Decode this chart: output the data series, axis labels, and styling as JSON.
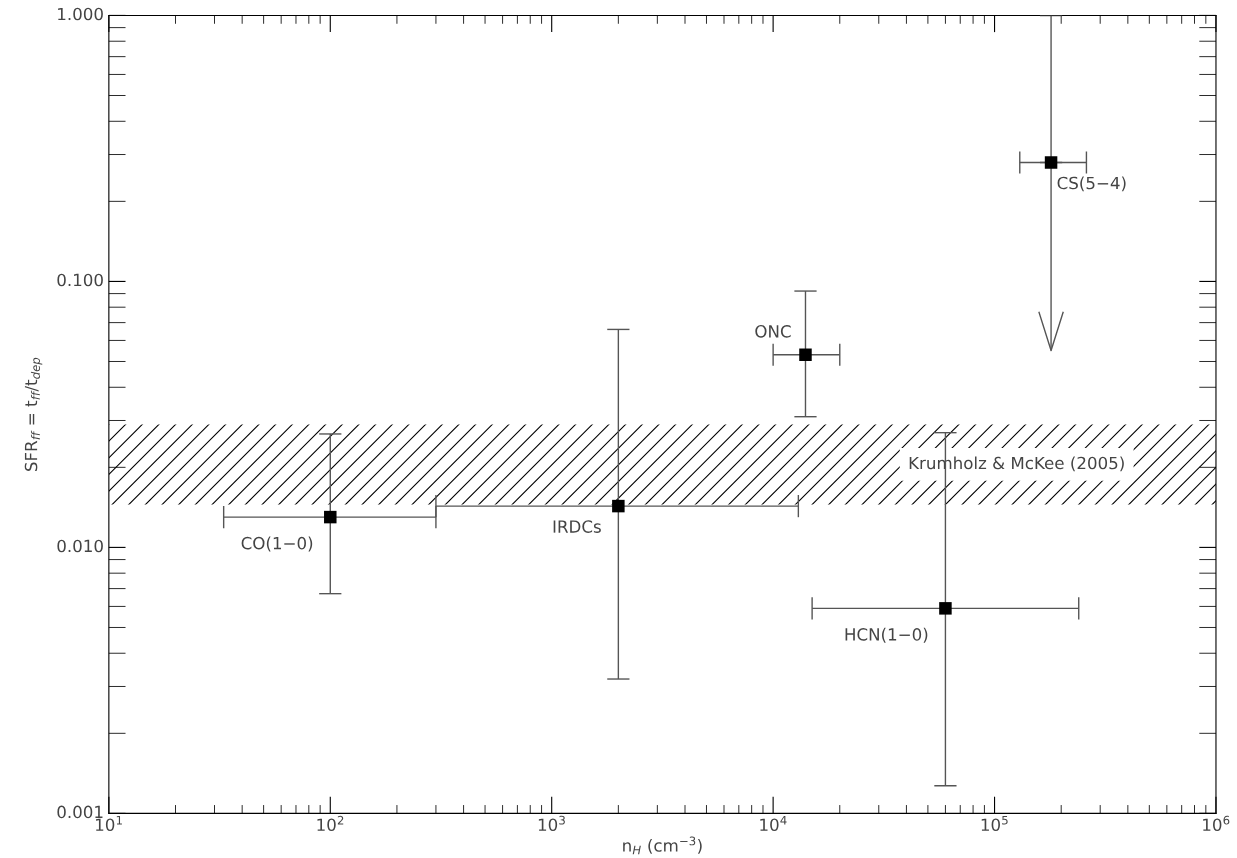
{
  "chart_data": {
    "type": "scatter",
    "xlabel": "n$_{H}$ (cm$^{−3}$)",
    "ylabel": "SFR$_{ff}$ = t$_{ff}$/t$_{dep}$",
    "log": "xy",
    "marker": "square",
    "grid": false,
    "legend": false,
    "xlim": [
      10,
      1000000
    ],
    "ylim": [
      0.001,
      1.0
    ],
    "xticks": [
      {
        "value": 10,
        "label": "10$^{1}$"
      },
      {
        "value": 100,
        "label": "10$^{2}$"
      },
      {
        "value": 1000,
        "label": "10$^{3}$"
      },
      {
        "value": 10000,
        "label": "10$^{4}$"
      },
      {
        "value": 100000,
        "label": "10$^{5}$"
      },
      {
        "value": 1000000,
        "label": "10$^{6}$"
      }
    ],
    "yticks": [
      {
        "value": 0.001,
        "label": "0.001"
      },
      {
        "value": 0.01,
        "label": "0.010"
      },
      {
        "value": 0.1,
        "label": "0.100"
      },
      {
        "value": 1.0,
        "label": "1.000"
      }
    ],
    "series": [
      {
        "color": "#000000",
        "x": [
          100,
          2000,
          14000,
          60000
        ],
        "values": [
          0.013,
          0.0143,
          0.053,
          0.0059
        ],
        "errors": [
          [
            0.0067,
            0.0267
          ],
          [
            0.0032,
            0.066
          ],
          [
            0.031,
            0.092
          ],
          [
            0.00127,
            0.027
          ]
        ],
        "xerrors": [
          [
            33,
            300
          ],
          [
            300,
            13000
          ],
          [
            10000,
            20000
          ],
          [
            15000,
            240000
          ]
        ]
      },
      {
        "color": "#000000",
        "x": [
          180000
        ],
        "values": [
          0.28
        ],
        "errors": [
          [
            0.055,
            1.0
          ]
        ],
        "xerrors": [
          [
            130000,
            260000
          ]
        ]
      }
    ],
    "bands": [
      {
        "axis": "y",
        "from": 0.0145,
        "to": 0.029,
        "label": "Krumholz & McKee (2005)",
        "color": "#000000"
      }
    ],
    "annotations": [
      {
        "text": "CO(1−0)",
        "x": 100,
        "y": 0.013
      },
      {
        "text": "IRDCs",
        "x": 2000,
        "y": 0.0143
      },
      {
        "text": "ONC",
        "x": 14000,
        "y": 0.053
      },
      {
        "text": "HCN(1−0)",
        "x": 60000,
        "y": 0.0059
      },
      {
        "text": "CS(5−4)",
        "x": 180000,
        "y": 0.28
      }
    ]
  }
}
